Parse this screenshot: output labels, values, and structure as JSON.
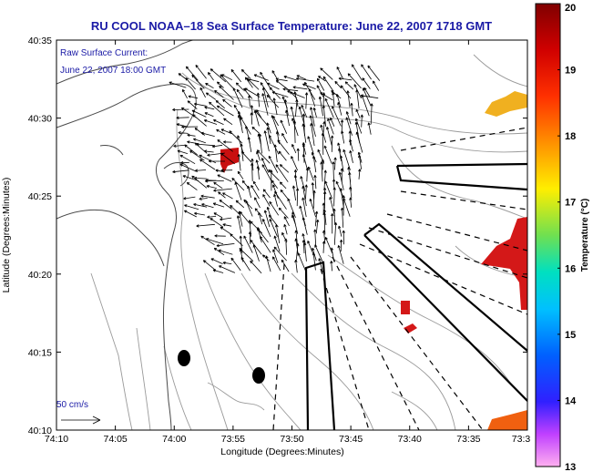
{
  "title": "RU COOL   NOAA–18  Sea Surface Temperature:  June 22, 2007 1718 GMT",
  "inset": {
    "line1": "Raw Surface Current:",
    "line2": "June 22, 2007 18:00 GMT"
  },
  "scale_label": "50 cm/s",
  "x_axis": {
    "label": "Longitude (Degrees:Minutes)",
    "ticks": [
      "74:10",
      "74:05",
      "74:00",
      "73:55",
      "73:50",
      "73:45",
      "73:40",
      "73:35",
      "73:3"
    ]
  },
  "y_axis": {
    "label": "Latitude (Degrees:Minutes)",
    "ticks": [
      "40:35",
      "40:30",
      "40:25",
      "40:20",
      "40:15",
      "40:10"
    ]
  },
  "colorbar": {
    "label": "Temperature (°C)",
    "ticks": [
      "20",
      "19",
      "18",
      "17",
      "16",
      "15",
      "14",
      "13"
    ],
    "min": 13,
    "max": 20
  },
  "colors": {
    "title_text": "#1a1aa6",
    "sst_hot": "#c81010",
    "sst_warm": "#f08010",
    "sst_yellow": "#f0c020"
  }
}
